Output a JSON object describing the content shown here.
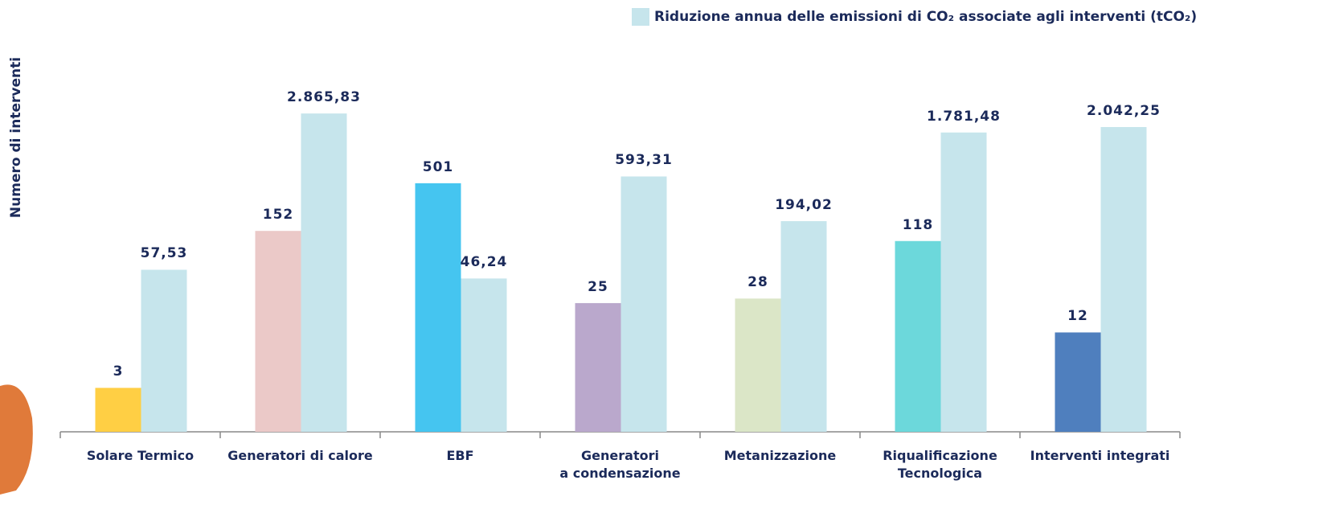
{
  "chart_data": {
    "type": "bar",
    "categories": [
      "Solare Termico",
      "Generatori di calore",
      "EBF",
      "Generatori\na condensazione",
      "Metanizzazione",
      "Riqualificazione\nTecnologica",
      "Interventi integrati"
    ],
    "series": [
      {
        "name": "Numero di interventi",
        "colors": [
          "#ffcf44",
          "#ebc9c8",
          "#45c5f0",
          "#baa8cc",
          "#dbe6c7",
          "#6cd8db",
          "#4f7fbe"
        ],
        "values": [
          3,
          152,
          501,
          25,
          28,
          118,
          12
        ]
      },
      {
        "name": "Riduzione  annua delle emissioni di CO₂ associate agli interventi (tCO₂)",
        "color": "#c6e5ec",
        "values": [
          57.53,
          2865.83,
          46.24,
          593.31,
          194.02,
          1781.48,
          2042.25
        ],
        "value_labels": [
          "57,53",
          "2.865,83",
          "46,24",
          "593,31",
          "194,02",
          "1.781,48",
          "2.042,25"
        ]
      }
    ],
    "ylim": [
      1,
      10000
    ],
    "log_scale": true,
    "grid": false,
    "legend": "top-right"
  }
}
